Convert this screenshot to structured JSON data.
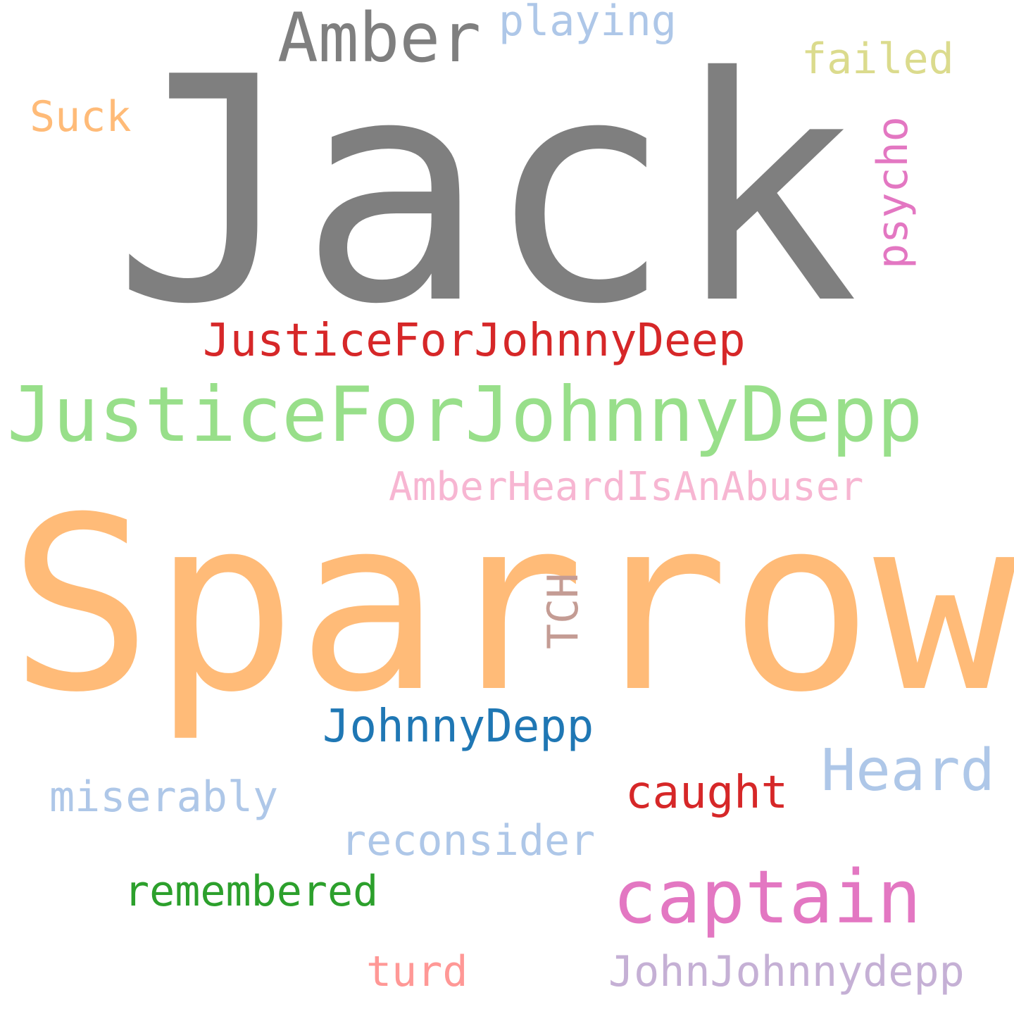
{
  "wordcloud": {
    "background": "#ffffff",
    "words": {
      "jack": {
        "text": "Jack",
        "color": "#7f7f7f"
      },
      "sparrow": {
        "text": "Sparrow",
        "color": "#ffbb78"
      },
      "justice_depp": {
        "text": "JusticeForJohnnyDepp",
        "color": "#98df8a"
      },
      "justice_deep": {
        "text": "JusticeForJohnnyDeep",
        "color": "#d62728"
      },
      "amber_abuser": {
        "text": "AmberHeardIsAnAbuser",
        "color": "#f7b6d2"
      },
      "amber": {
        "text": "Amber",
        "color": "#7f7f7f"
      },
      "playing": {
        "text": "playing",
        "color": "#aec7e8"
      },
      "failed": {
        "text": "failed",
        "color": "#dbdb8d"
      },
      "suck": {
        "text": "Suck",
        "color": "#ffbb78"
      },
      "psycho": {
        "text": "psycho",
        "color": "#e377c2"
      },
      "tch": {
        "text": "TCH",
        "color": "#c49c94"
      },
      "johnnydepp": {
        "text": "JohnnyDepp",
        "color": "#1f77b4"
      },
      "heard": {
        "text": "Heard",
        "color": "#aec7e8"
      },
      "miserably": {
        "text": "miserably",
        "color": "#aec7e8"
      },
      "caught": {
        "text": "caught",
        "color": "#d62728"
      },
      "reconsider": {
        "text": "reconsider",
        "color": "#aec7e8"
      },
      "captain": {
        "text": "captain",
        "color": "#e377c2"
      },
      "remembered": {
        "text": "remembered",
        "color": "#2ca02c"
      },
      "turd": {
        "text": "turd",
        "color": "#ff9896"
      },
      "johnjohnnydepp": {
        "text": "JohnJohnnydepp",
        "color": "#c5b0d5"
      }
    }
  }
}
